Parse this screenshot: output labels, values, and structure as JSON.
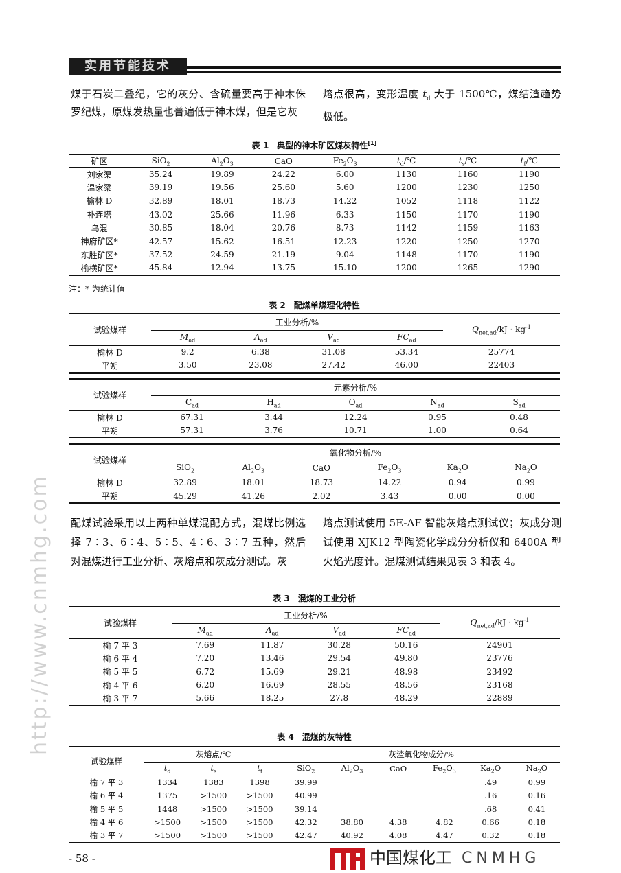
{
  "header": {
    "section": "实用节能技术"
  },
  "para1": {
    "left": "煤于石炭二叠纪，它的灰分、含硫量要高于神木侏罗纪煤，原煤发热量也普遍低于神木煤，但是它灰",
    "right": "熔点很高，变形温度 t_d 大于 1500℃，煤结渣趋势极低。"
  },
  "table1": {
    "caption": "表 1　典型的神木矿区煤灰特性",
    "ref": "[1]",
    "header": [
      [
        {
          "t": "矿区"
        },
        {
          "m": "SiO",
          "s": "2"
        },
        {
          "m": "Al",
          "s": "2",
          "m2": "O",
          "s2": "3"
        },
        {
          "t": "CaO"
        },
        {
          "m": "Fe",
          "s": "2",
          "m2": "O",
          "s2": "3"
        },
        {
          "m": "t",
          "s": "d",
          "tail": "/℃",
          "it": true
        },
        {
          "m": "t",
          "s": "s",
          "tail": "/℃",
          "it": true
        },
        {
          "m": "t",
          "s": "f",
          "tail": "/℃",
          "it": true
        }
      ]
    ],
    "rows": [
      [
        "刘家渠",
        "35.24",
        "19.89",
        "24.22",
        "6.00",
        "1130",
        "1160",
        "1190"
      ],
      [
        "温家梁",
        "39.19",
        "19.56",
        "25.60",
        "5.60",
        "1200",
        "1230",
        "1250"
      ],
      [
        "榆林 D",
        "32.89",
        "18.01",
        "18.73",
        "14.22",
        "1052",
        "1118",
        "1122"
      ],
      [
        "补连塔",
        "43.02",
        "25.66",
        "11.96",
        "6.33",
        "1150",
        "1170",
        "1190"
      ],
      [
        "乌混",
        "30.85",
        "18.04",
        "20.76",
        "8.73",
        "1142",
        "1159",
        "1163"
      ],
      [
        "神府矿区*",
        "42.57",
        "15.62",
        "16.51",
        "12.23",
        "1220",
        "1250",
        "1270"
      ],
      [
        "东胜矿区*",
        "37.52",
        "24.59",
        "21.19",
        "9.04",
        "1148",
        "1170",
        "1190"
      ],
      [
        "榆横矿区*",
        "45.84",
        "12.94",
        "13.75",
        "15.10",
        "1200",
        "1265",
        "1290"
      ]
    ],
    "note": "注：* 为统计值"
  },
  "table2": {
    "caption": "表 2　配煤单煤理化特性",
    "sections": [
      {
        "sample_label": "试验煤样",
        "group": "工业分析/%",
        "cols": [
          {
            "m": "M",
            "s": "ad",
            "it": true
          },
          {
            "m": "A",
            "s": "ad",
            "it": true
          },
          {
            "m": "V",
            "s": "ad",
            "it": true
          },
          {
            "m": "FC",
            "s": "ad",
            "it": true
          }
        ],
        "extra": "Q_net,ad/kJ · kg^-1",
        "rows": [
          [
            "榆林 D",
            "9.2",
            "6.38",
            "31.08",
            "53.34",
            "25774"
          ],
          [
            "平朔",
            "3.50",
            "23.08",
            "27.42",
            "46.00",
            "22403"
          ]
        ]
      },
      {
        "sample_label": "试验煤样",
        "group": "元素分析/%",
        "cols": [
          {
            "m": "C",
            "s": "ad"
          },
          {
            "m": "H",
            "s": "ad"
          },
          {
            "m": "O",
            "s": "ad"
          },
          {
            "m": "N",
            "s": "ad"
          },
          {
            "m": "S",
            "s": "ad"
          }
        ],
        "rows": [
          [
            "榆林 D",
            "67.31",
            "3.44",
            "12.24",
            "0.95",
            "0.48"
          ],
          [
            "平朔",
            "57.31",
            "3.76",
            "10.71",
            "1.00",
            "0.64"
          ]
        ]
      },
      {
        "sample_label": "试验煤样",
        "group": "氧化物分析/%",
        "cols": [
          {
            "m": "SiO",
            "s": "2"
          },
          {
            "m": "Al",
            "s": "2",
            "m2": "O",
            "s2": "3"
          },
          {
            "t": "CaO"
          },
          {
            "m": "Fe",
            "s": "2",
            "m2": "O",
            "s2": "3"
          },
          {
            "m": "Ka",
            "s": "2",
            "m2": "O"
          },
          {
            "m": "Na",
            "s": "2",
            "m2": "O"
          }
        ],
        "rows": [
          [
            "榆林 D",
            "32.89",
            "18.01",
            "18.73",
            "14.22",
            "0.94",
            "0.99"
          ],
          [
            "平朔",
            "45.29",
            "41.26",
            "2.02",
            "3.43",
            "0.00",
            "0.00"
          ]
        ]
      }
    ]
  },
  "para2": {
    "left": "配煤试验采用以上两种单煤混配方式，混煤比例选择 7∶3、6∶4、5∶5、4∶6、3∶7 五种，然后对混煤进行工业分析、灰熔点和灰成分测试。灰",
    "right": "熔点测试使用 5E-AF 智能灰熔点测试仪；灰成分测试使用 XJK12 型陶瓷化学成分分析仪和 6400A 型火焰光度计。混煤测试结果见表 3 和表 4。"
  },
  "table3": {
    "caption": "表 3　混煤的工业分析",
    "sample_label": "试验煤样",
    "group": "工业分析/%",
    "cols": [
      {
        "m": "M",
        "s": "ad",
        "it": true
      },
      {
        "m": "A",
        "s": "ad",
        "it": true
      },
      {
        "m": "V",
        "s": "ad",
        "it": true
      },
      {
        "m": "FC",
        "s": "ad",
        "it": true
      }
    ],
    "extra": "Q_net,ad/kJ · kg^-1",
    "rows": [
      [
        "榆 7 平 3",
        "7.69",
        "11.87",
        "30.28",
        "50.16",
        "24901"
      ],
      [
        "榆 6 平 4",
        "7.20",
        "13.46",
        "29.54",
        "49.80",
        "23776"
      ],
      [
        "榆 5 平 5",
        "6.72",
        "15.69",
        "29.21",
        "48.98",
        "23492"
      ],
      [
        "榆 4 平 6",
        "6.20",
        "16.69",
        "28.55",
        "48.56",
        "23168"
      ],
      [
        "榆 3 平 7",
        "5.66",
        "18.25",
        "27.8",
        "48.29",
        "22889"
      ]
    ]
  },
  "table4": {
    "caption": "表 4　混煤的灰特性",
    "sample_label": "试验煤样",
    "group1": "灰熔点/℃",
    "group2": "灰渣氧化物成分/%",
    "cols1": [
      {
        "m": "t",
        "s": "d",
        "it": true
      },
      {
        "m": "t",
        "s": "s",
        "it": true
      },
      {
        "m": "t",
        "s": "f",
        "it": true
      }
    ],
    "cols2": [
      {
        "m": "SiO",
        "s": "2"
      },
      {
        "m": "Al",
        "s": "2",
        "m2": "O",
        "s2": "3"
      },
      {
        "t": "CaO"
      },
      {
        "m": "Fe",
        "s": "2",
        "m2": "O",
        "s2": "3"
      },
      {
        "m": "Ka",
        "s": "2",
        "m2": "O"
      },
      {
        "m": "Na",
        "s": "2",
        "m2": "O"
      }
    ],
    "rows": [
      [
        "榆 7 平 3",
        "1334",
        "1383",
        "1398",
        "39.99",
        "",
        "",
        "",
        ".49",
        "0.99"
      ],
      [
        "榆 6 平 4",
        "1375",
        ">1500",
        ">1500",
        "40.99",
        "",
        "",
        "",
        ".16",
        "0.16"
      ],
      [
        "榆 5 平 5",
        "1448",
        ">1500",
        ">1500",
        "39.14",
        "",
        "",
        "",
        ".68",
        "0.41"
      ],
      [
        "榆 4 平 6",
        ">1500",
        ">1500",
        ">1500",
        "42.32",
        "38.80",
        "4.38",
        "4.82",
        "0.66",
        "0.18"
      ],
      [
        "榆 3 平 7",
        ">1500",
        ">1500",
        ">1500",
        "42.47",
        "40.92",
        "4.08",
        "4.47",
        "0.32",
        "0.18"
      ]
    ]
  },
  "page_number": "- 58 -",
  "watermark": {
    "url": "http://www.cnmhg.com",
    "logo_cn": "中国煤化工",
    "logo_en": "CNMHG",
    "logo_color": "#c8161d"
  }
}
